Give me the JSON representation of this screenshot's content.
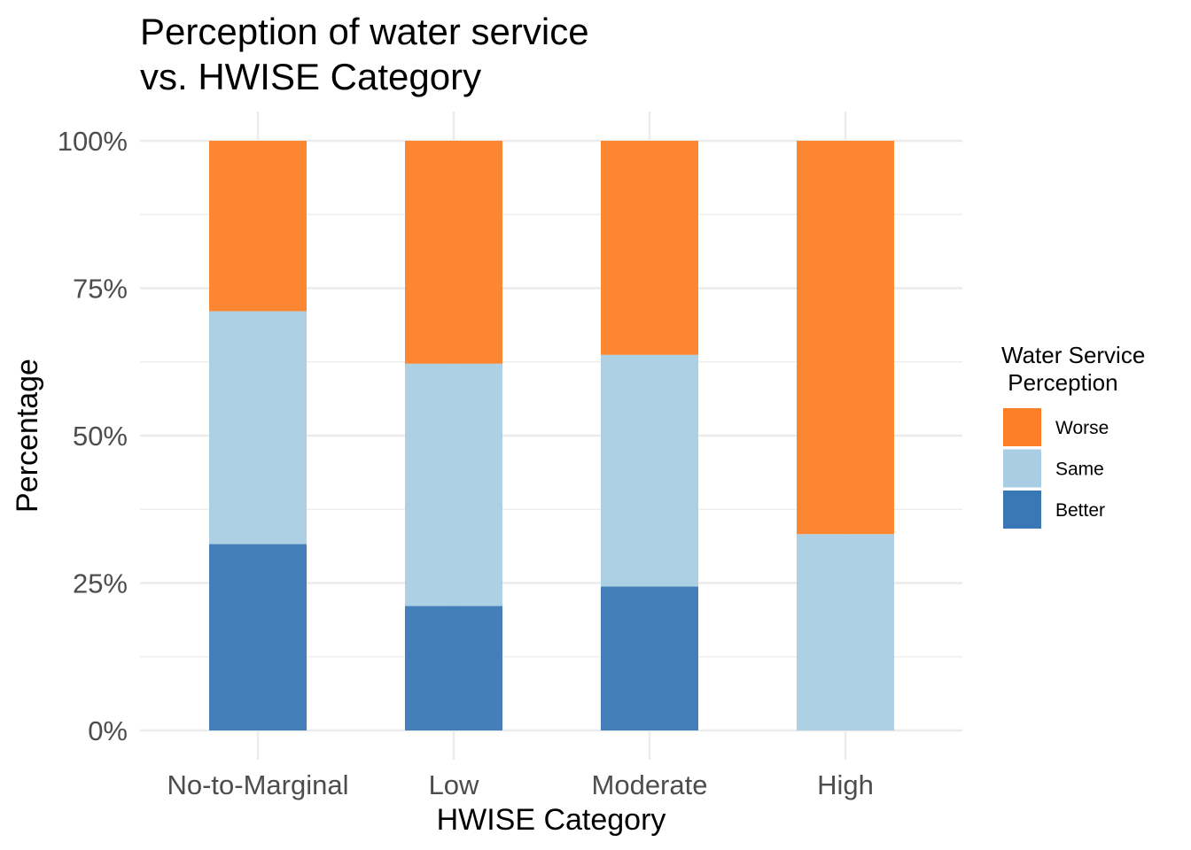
{
  "chart_data": {
    "type": "bar",
    "stacked": true,
    "title_lines": [
      "Perception of water service",
      "vs. HWISE Category"
    ],
    "xlabel": "HWISE Category",
    "ylabel": "Percentage",
    "categories": [
      "No-to-Marginal",
      "Low",
      "Moderate",
      "High"
    ],
    "yticks": [
      "0%",
      "25%",
      "50%",
      "75%",
      "100%"
    ],
    "ylim": [
      0,
      100
    ],
    "grid": true,
    "legend": {
      "title_lines": [
        "Water Service",
        " Perception"
      ],
      "position": "right"
    },
    "series": [
      {
        "name": "Better",
        "color": "#3a78b5",
        "values": [
          31.6,
          21.1,
          24.4,
          0
        ]
      },
      {
        "name": "Same",
        "color": "#a9cee3",
        "values": [
          39.5,
          41.1,
          39.3,
          33.3
        ]
      },
      {
        "name": "Worse",
        "color": "#fd7f28",
        "values": [
          28.9,
          37.8,
          36.3,
          66.7
        ]
      }
    ]
  }
}
